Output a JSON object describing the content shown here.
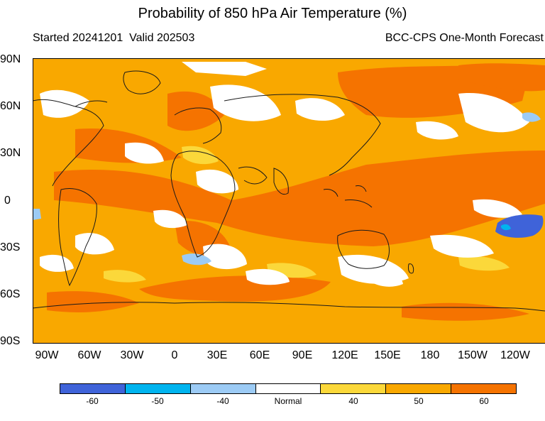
{
  "title": "Probability of 850 hPa Air Temperature (%)",
  "subtitle_left": "Started 20241201  Valid 202503",
  "subtitle_right": "BCC-CPS One-Month Forecast",
  "lat_labels": [
    "90N",
    "60N",
    "30N",
    "0",
    "30S",
    "60S",
    "90S"
  ],
  "lon_labels": [
    "90W",
    "60W",
    "30W",
    "0",
    "30E",
    "60E",
    "90E",
    "120E",
    "150E",
    "180",
    "150W",
    "120W"
  ],
  "legend": {
    "colors": [
      "#3f63d9",
      "#00b4ef",
      "#9ccbf5",
      "#ffffff",
      "#fbd83a",
      "#f9a800",
      "#f57300"
    ],
    "labels": [
      "-60",
      "-50",
      "-40",
      "Normal",
      "40",
      "50",
      "60"
    ]
  },
  "map_colors": {
    "base": "#f9a800",
    "strong": "#f57300",
    "moderate": "#fbd83a",
    "normal": "#ffffff",
    "cold_light": "#9ccbf5",
    "cold_medium": "#00b4ef",
    "cold_strong": "#3f63d9",
    "coast": "#1a1a1a"
  }
}
